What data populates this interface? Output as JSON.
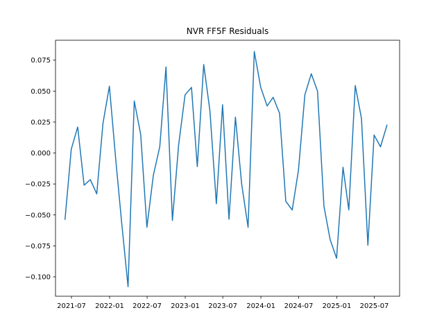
{
  "chart_data": {
    "type": "line",
    "title": "NVR FF5F Residuals",
    "xlabel": "",
    "ylabel": "",
    "grid": false,
    "legend": false,
    "xlim": [
      "2021-04-15",
      "2025-10-31"
    ],
    "ylim": [
      -0.1157,
      0.0911
    ],
    "x_ticks": [
      "2021-07",
      "2022-01",
      "2022-07",
      "2023-01",
      "2023-07",
      "2024-01",
      "2024-07",
      "2025-01",
      "2025-07"
    ],
    "y_ticks": [
      -0.1,
      -0.075,
      -0.05,
      -0.025,
      0.0,
      0.025,
      0.05,
      0.075
    ],
    "y_tick_labels": [
      "−0.100",
      "−0.075",
      "−0.050",
      "−0.025",
      "0.000",
      "0.025",
      "0.050",
      "0.075"
    ],
    "series": [
      {
        "color": "#1f77b4",
        "points": [
          [
            "2021-05-31",
            -0.0535
          ],
          [
            "2021-06-30",
            0.003
          ],
          [
            "2021-07-31",
            0.021
          ],
          [
            "2021-08-31",
            -0.026
          ],
          [
            "2021-09-30",
            -0.0215
          ],
          [
            "2021-10-31",
            -0.033
          ],
          [
            "2021-11-30",
            0.024
          ],
          [
            "2021-12-31",
            0.054
          ],
          [
            "2022-01-31",
            -0.006
          ],
          [
            "2022-02-28",
            -0.056
          ],
          [
            "2022-03-31",
            -0.108
          ],
          [
            "2022-04-30",
            0.042
          ],
          [
            "2022-05-31",
            0.015
          ],
          [
            "2022-06-30",
            -0.06
          ],
          [
            "2022-07-31",
            -0.018
          ],
          [
            "2022-08-31",
            0.005
          ],
          [
            "2022-09-30",
            0.0695
          ],
          [
            "2022-10-31",
            -0.0545
          ],
          [
            "2022-11-30",
            0.0065
          ],
          [
            "2022-12-31",
            0.047
          ],
          [
            "2023-01-31",
            0.053
          ],
          [
            "2023-02-28",
            -0.011
          ],
          [
            "2023-03-31",
            0.0715
          ],
          [
            "2023-04-30",
            0.034
          ],
          [
            "2023-05-31",
            -0.041
          ],
          [
            "2023-06-30",
            0.039
          ],
          [
            "2023-07-31",
            -0.0535
          ],
          [
            "2023-08-31",
            0.029
          ],
          [
            "2023-09-30",
            -0.025
          ],
          [
            "2023-10-31",
            -0.06
          ],
          [
            "2023-11-30",
            0.082
          ],
          [
            "2023-12-31",
            0.053
          ],
          [
            "2024-01-31",
            0.038
          ],
          [
            "2024-02-29",
            0.045
          ],
          [
            "2024-03-31",
            0.032
          ],
          [
            "2024-04-30",
            -0.039
          ],
          [
            "2024-05-31",
            -0.046
          ],
          [
            "2024-06-30",
            -0.014
          ],
          [
            "2024-07-31",
            0.047
          ],
          [
            "2024-08-31",
            0.064
          ],
          [
            "2024-09-30",
            0.05
          ],
          [
            "2024-10-31",
            -0.043
          ],
          [
            "2024-11-30",
            -0.07
          ],
          [
            "2024-12-31",
            -0.085
          ],
          [
            "2025-01-31",
            -0.0115
          ],
          [
            "2025-02-28",
            -0.046
          ],
          [
            "2025-03-31",
            0.0545
          ],
          [
            "2025-04-30",
            0.028
          ],
          [
            "2025-05-31",
            -0.0745
          ],
          [
            "2025-06-30",
            0.0145
          ],
          [
            "2025-07-31",
            0.005
          ],
          [
            "2025-08-31",
            0.0225
          ]
        ]
      }
    ]
  }
}
